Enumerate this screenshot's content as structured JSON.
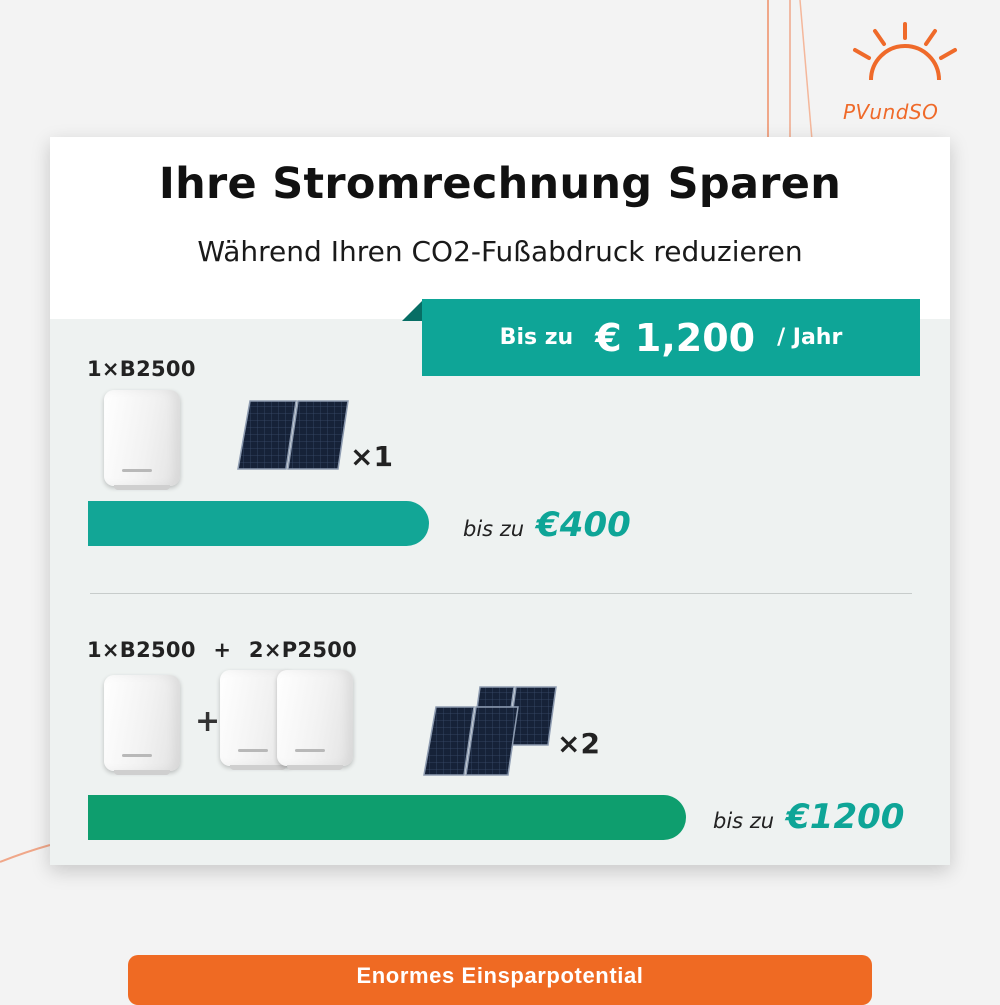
{
  "brand": {
    "logo_text": "PVundSO",
    "accent": "#ef6a2a"
  },
  "header": {
    "title": "Ihre Stromrechnung Sparen",
    "subtitle": "Während Ihren CO2-Fußabdruck reduzieren"
  },
  "ribbon": {
    "prefix": "Bis zu",
    "amount": "€ 1,200",
    "suffix": "/ Jahr",
    "color": "#0ea597"
  },
  "option1": {
    "label": "1×B2500",
    "panels_multiplier": "×1",
    "saving_prefix": "bis zu",
    "saving_value": "€400",
    "bar_color": "#12a696"
  },
  "option2": {
    "label_battery": "1×B2500",
    "label_plus": "+",
    "label_pack": "2×P2500",
    "plus_sign": "+",
    "panels_multiplier": "×2",
    "saving_prefix": "bis zu",
    "saving_value": "€1200",
    "bar_color": "#0e9e6e"
  },
  "footer": {
    "label": "Enormes Einsparpotential",
    "color": "#ef6a23"
  },
  "icons": [
    "sun-logo-icon",
    "battery-b2500-icon",
    "battery-p2500-icon",
    "solar-panel-icon"
  ]
}
